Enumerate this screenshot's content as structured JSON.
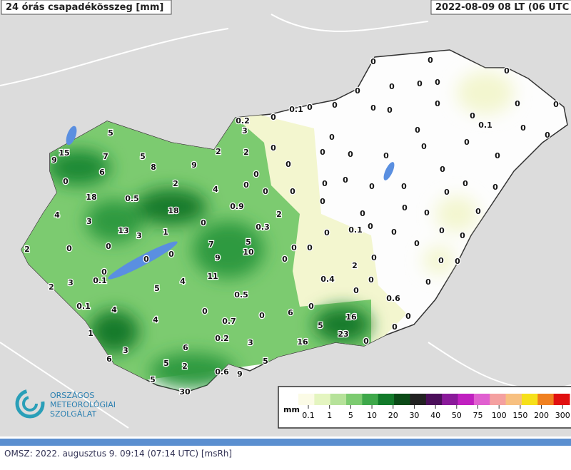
{
  "header": {
    "title": "24 órás csapadékösszeg [mm]",
    "time": "2022-08-09 08 LT (06 UTC"
  },
  "stations": [
    15,
    9,
    5,
    7,
    5,
    8,
    9,
    2,
    6,
    0,
    2,
    4,
    18,
    0.5,
    18,
    4,
    3,
    13,
    3,
    1,
    0,
    0.9,
    2,
    0.3,
    7,
    5,
    10,
    9,
    0,
    0,
    0,
    2,
    0,
    0,
    0.1,
    3,
    2,
    5,
    4,
    11,
    0.5,
    0.1,
    4,
    4,
    0,
    0.7,
    0,
    6,
    0,
    16,
    5,
    23,
    1,
    0.2,
    3,
    16,
    0,
    3,
    6,
    6,
    5,
    2,
    5,
    0.6,
    9,
    5,
    30,
    0.2,
    3,
    0,
    0.1,
    2,
    0,
    0,
    0,
    0,
    0,
    0,
    0,
    0,
    0,
    0.4,
    2,
    0,
    0,
    0.6,
    0,
    0,
    0.1,
    0,
    0,
    0,
    0,
    0,
    0,
    0,
    0,
    0,
    0,
    0,
    0,
    0,
    0,
    0,
    0,
    0,
    0.1,
    0,
    0,
    0,
    0,
    0,
    0,
    0,
    0,
    0,
    0,
    0,
    0,
    0,
    0,
    0,
    0,
    0,
    0,
    0,
    0,
    0,
    0,
    0,
    0,
    0,
    0,
    0,
    0,
    0,
    0,
    0
  ],
  "legend": {
    "unit": "mm",
    "ticks": [
      0.1,
      1,
      5,
      10,
      20,
      30,
      40,
      50,
      75,
      100,
      150,
      200,
      300
    ],
    "colors": [
      "#fbfbe6",
      "#e4f5c0",
      "#b6e29a",
      "#7ccb70",
      "#3ea84a",
      "#127a2a",
      "#0b4a17",
      "#222222",
      "#4b0f5a",
      "#8a1a9a",
      "#c020c0",
      "#e060d0",
      "#f4a0a0",
      "#f7c080",
      "#f6e01a",
      "#f08020",
      "#e01010"
    ]
  },
  "logo": {
    "line1": "ORSZÁGOS",
    "line2": "METEOROLÓGIAI",
    "line3": "SZOLGÁLAT"
  },
  "footer": {
    "source": "OMSZ:",
    "date": "2022. augusztus 9. 09:14 (07:14 UTC)",
    "tag": "[msRh]"
  }
}
